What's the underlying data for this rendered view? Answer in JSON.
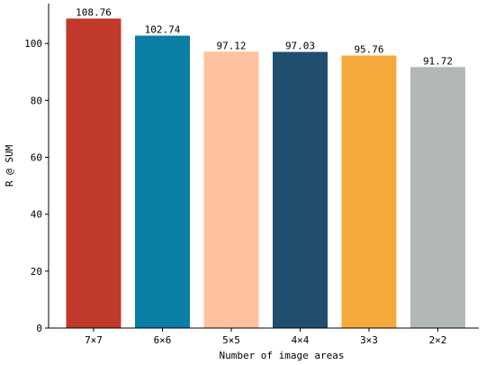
{
  "chart_data": {
    "type": "bar",
    "categories": [
      "7×7",
      "6×6",
      "5×5",
      "4×4",
      "3×3",
      "2×2"
    ],
    "values": [
      108.76,
      102.74,
      97.12,
      97.03,
      95.76,
      91.72
    ],
    "value_labels": [
      "108.76",
      "102.74",
      "97.12",
      "97.03",
      "95.76",
      "91.72"
    ],
    "colors": [
      "#c0392b",
      "#0a7ea4",
      "#ffc2a0",
      "#1f4e6e",
      "#f6a93b",
      "#b2b8b8"
    ],
    "xlabel": "Number of image areas",
    "ylabel": "R @ SUM",
    "ylim": [
      0,
      114
    ],
    "yticks": [
      0,
      20,
      40,
      60,
      80,
      100
    ],
    "grid": false,
    "legend": "none"
  }
}
